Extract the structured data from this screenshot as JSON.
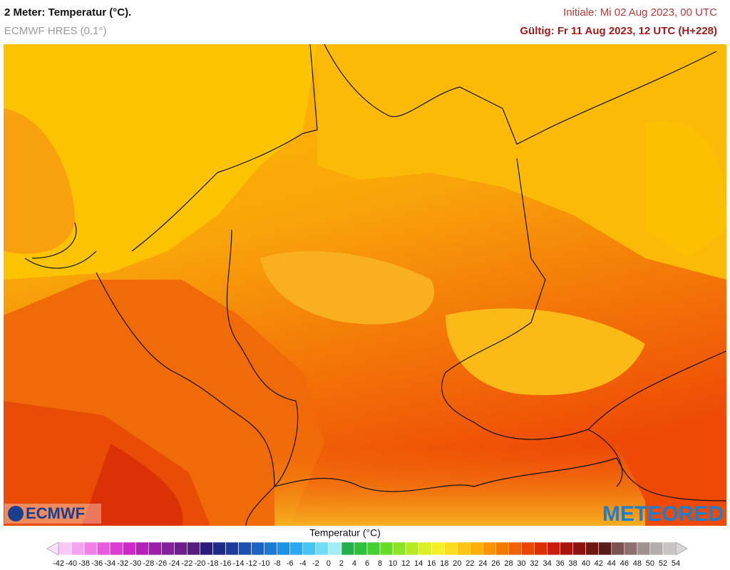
{
  "header": {
    "title": "2 Meter: Temperatur (°C).",
    "subtitle": "ECMWF HRES (0.1°)",
    "initial": "Initiale: Mi 02 Aug 2023, 00 UTC",
    "valid": "Gültig: Fr 11 Aug 2023, 12 UTC (H+228)"
  },
  "logos": {
    "left": "ECMWF",
    "right": "METEORED"
  },
  "legend": {
    "title": "Temperatur (°C)",
    "ticks": [
      -42,
      -40,
      -38,
      -36,
      -34,
      -32,
      -30,
      -28,
      -26,
      -24,
      -22,
      -20,
      -18,
      -16,
      -14,
      -12,
      -10,
      -8,
      -6,
      -4,
      -2,
      0,
      2,
      4,
      6,
      8,
      10,
      12,
      14,
      16,
      18,
      20,
      22,
      24,
      26,
      28,
      30,
      32,
      34,
      36,
      38,
      40,
      42,
      44,
      46,
      48,
      50,
      52,
      54
    ],
    "colors": [
      "#f8c8f4",
      "#f4a4ee",
      "#ee80e6",
      "#e65cdc",
      "#dc3cd2",
      "#cc28c8",
      "#b420b8",
      "#9c1eaa",
      "#84209c",
      "#6c1e8e",
      "#561c80",
      "#2c1a7c",
      "#1e2a8a",
      "#1c3c9c",
      "#1c50b0",
      "#1c64c4",
      "#1c7ad6",
      "#1c92e4",
      "#28aaf0",
      "#44c4f4",
      "#70dcf6",
      "#a0eef4",
      "#22b04a",
      "#30c03c",
      "#44d030",
      "#66dc28",
      "#8ce424",
      "#b4ea22",
      "#dcee24",
      "#f6ee28",
      "#fcdc20",
      "#fcc414",
      "#fcae0a",
      "#f89406",
      "#f47a04",
      "#f06004",
      "#e84604",
      "#dc2e06",
      "#c81c0c",
      "#a8140e",
      "#8a1410",
      "#6e1612",
      "#5a1c18",
      "#7a5250",
      "#8c7070",
      "#a09090",
      "#b4acac",
      "#c8c4c4"
    ]
  }
}
